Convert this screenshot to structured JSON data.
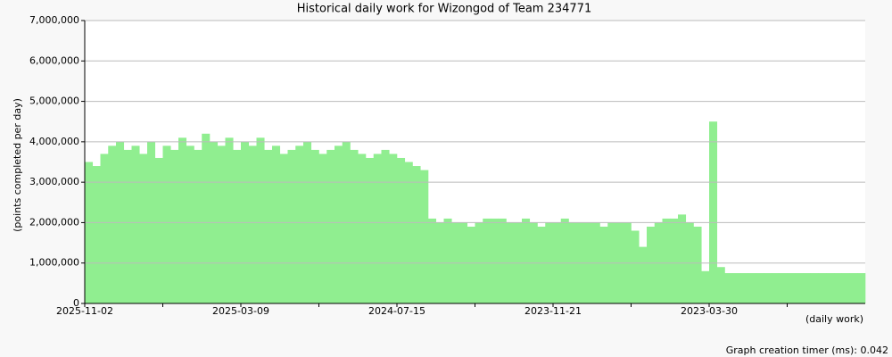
{
  "chart_data": {
    "type": "bar",
    "title": "Historical daily work for Wizongod of Team 234771",
    "y_label": "(points completed per day)",
    "x_label": "(daily work)",
    "footer": "Graph creation timer (ms): 0.042",
    "color": "#90ee90",
    "grid": true,
    "ylim": [
      0,
      7000000
    ],
    "yticks": [
      0,
      {
        "value": 1000000,
        "label": "1,000,000"
      },
      {
        "value": 2000000,
        "label": "2,000,000"
      },
      {
        "value": 3000000,
        "label": "3,000,000"
      },
      {
        "value": 4000000,
        "label": "4,000,000"
      },
      {
        "value": 5000000,
        "label": "5,000,000"
      },
      {
        "value": 6000000,
        "label": "6,000,000"
      },
      {
        "value": 7000000,
        "label": "7,000,000"
      }
    ],
    "categories": [
      "2025-11-02",
      null,
      null,
      null,
      null,
      null,
      null,
      null,
      null,
      null,
      null,
      null,
      null,
      null,
      null,
      null,
      null,
      null,
      null,
      null,
      "2025-03-09",
      null,
      null,
      null,
      null,
      null,
      null,
      null,
      null,
      null,
      null,
      null,
      null,
      null,
      null,
      null,
      null,
      null,
      null,
      null,
      "2024-07-15",
      null,
      null,
      null,
      null,
      null,
      null,
      null,
      null,
      null,
      null,
      null,
      null,
      null,
      null,
      null,
      null,
      null,
      null,
      null,
      "2023-11-21",
      null,
      null,
      null,
      null,
      null,
      null,
      null,
      null,
      null,
      null,
      null,
      null,
      null,
      null,
      null,
      null,
      null,
      null,
      null,
      "2023-03-30",
      null,
      null,
      null,
      null,
      null,
      null,
      null,
      null,
      null,
      null,
      null,
      null,
      null,
      null,
      null,
      null,
      null,
      null,
      null
    ],
    "values": [
      3500000,
      3400000,
      3700000,
      3900000,
      4000000,
      3800000,
      3900000,
      3700000,
      4000000,
      3600000,
      3900000,
      3800000,
      4100000,
      3900000,
      3800000,
      4200000,
      4000000,
      3900000,
      4100000,
      3800000,
      4000000,
      3900000,
      4100000,
      3800000,
      3900000,
      3700000,
      3800000,
      3900000,
      4000000,
      3800000,
      3700000,
      3800000,
      3900000,
      4000000,
      3800000,
      3700000,
      3600000,
      3700000,
      3800000,
      3700000,
      3600000,
      3500000,
      3400000,
      3300000,
      2100000,
      2000000,
      2100000,
      2000000,
      2000000,
      1900000,
      2000000,
      2100000,
      2100000,
      2100000,
      2000000,
      2000000,
      2100000,
      2000000,
      1900000,
      2000000,
      2000000,
      2100000,
      2000000,
      2000000,
      2000000,
      2000000,
      1900000,
      2000000,
      2000000,
      2000000,
      1800000,
      1400000,
      1900000,
      2000000,
      2100000,
      2100000,
      2200000,
      2000000,
      1900000,
      800000,
      4500000,
      900000,
      750000,
      750000,
      750000,
      750000,
      750000,
      750000,
      750000,
      750000,
      750000,
      750000,
      750000,
      750000,
      750000,
      750000,
      750000,
      750000,
      750000,
      750000
    ]
  }
}
